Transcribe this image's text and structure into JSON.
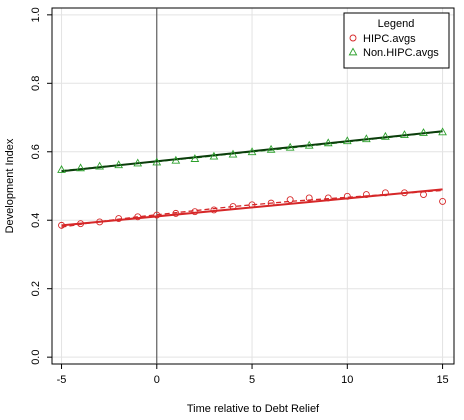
{
  "chart_data": {
    "type": "scatter",
    "xlabel": "Time relative to Debt Relief",
    "ylabel": "Development Index",
    "xlim": [
      -5.5,
      15.6
    ],
    "ylim": [
      -0.02,
      1.02
    ],
    "x_ticks": [
      -5,
      0,
      5,
      10,
      15
    ],
    "x_tick_labels": [
      "-5",
      "0",
      "5",
      "10",
      "15"
    ],
    "y_ticks": [
      0.0,
      0.2,
      0.4,
      0.6,
      0.8,
      1.0
    ],
    "y_tick_labels": [
      "0.0",
      "0.2",
      "0.4",
      "0.6",
      "0.8",
      "1.0"
    ],
    "grid": true,
    "vline_x": 0,
    "legend": {
      "title": "Legend",
      "position": "top-right",
      "entries": [
        "HIPC.avgs",
        "Non.HIPC.avgs"
      ]
    },
    "series": [
      {
        "name": "HIPC.avgs",
        "marker": "circle",
        "color": "#d62728",
        "x": [
          -5,
          -4,
          -3,
          -2,
          -1,
          0,
          1,
          2,
          3,
          4,
          5,
          6,
          7,
          8,
          9,
          10,
          11,
          12,
          13,
          14,
          15
        ],
        "y": [
          0.385,
          0.39,
          0.395,
          0.405,
          0.41,
          0.415,
          0.42,
          0.425,
          0.43,
          0.44,
          0.445,
          0.45,
          0.46,
          0.465,
          0.465,
          0.47,
          0.475,
          0.48,
          0.48,
          0.475,
          0.455
        ],
        "fit": [
          0.385,
          0.49
        ],
        "smooth": [
          0.38,
          0.388,
          0.396,
          0.403,
          0.41,
          0.416,
          0.422,
          0.428,
          0.434,
          0.44,
          0.445,
          0.45,
          0.455,
          0.459,
          0.463,
          0.467,
          0.471,
          0.475,
          0.479,
          0.483,
          0.487
        ]
      },
      {
        "name": "Non.HIPC.avgs",
        "marker": "triangle",
        "color": "#2ca02c",
        "x": [
          -5,
          -4,
          -3,
          -2,
          -1,
          0,
          1,
          2,
          3,
          4,
          5,
          6,
          7,
          8,
          9,
          10,
          11,
          12,
          13,
          14,
          15
        ],
        "y": [
          0.548,
          0.553,
          0.558,
          0.562,
          0.567,
          0.57,
          0.575,
          0.58,
          0.587,
          0.593,
          0.6,
          0.607,
          0.613,
          0.619,
          0.626,
          0.632,
          0.638,
          0.645,
          0.65,
          0.656,
          0.658
        ],
        "fit": [
          0.543,
          0.66
        ],
        "smooth": [
          0.545,
          0.55,
          0.556,
          0.561,
          0.566,
          0.571,
          0.577,
          0.582,
          0.588,
          0.594,
          0.6,
          0.605,
          0.611,
          0.617,
          0.623,
          0.629,
          0.635,
          0.641,
          0.647,
          0.653,
          0.659
        ]
      }
    ]
  }
}
